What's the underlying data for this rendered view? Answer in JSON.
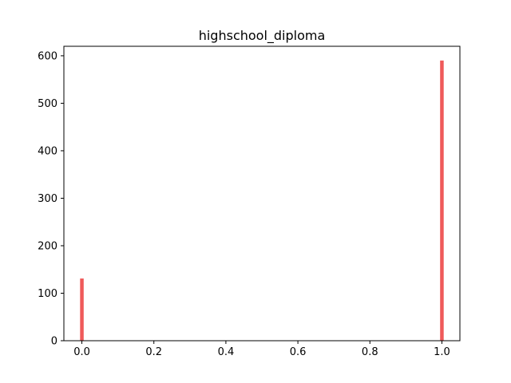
{
  "chart_data": {
    "type": "bar",
    "title": "highschool_diploma",
    "xlabel": "",
    "ylabel": "",
    "xlim": [
      -0.05,
      1.05
    ],
    "ylim": [
      0,
      620
    ],
    "xticks": [
      0.0,
      0.2,
      0.4,
      0.6,
      0.8,
      1.0
    ],
    "xtick_labels": [
      "0.0",
      "0.2",
      "0.4",
      "0.6",
      "0.8",
      "1.0"
    ],
    "yticks": [
      0,
      100,
      200,
      300,
      400,
      500,
      600
    ],
    "ytick_labels": [
      "0",
      "100",
      "200",
      "300",
      "400",
      "500",
      "600"
    ],
    "bin_width": 0.01,
    "bars": [
      {
        "x": 0.0,
        "value": 131
      },
      {
        "x": 1.0,
        "value": 590
      }
    ],
    "grid": false,
    "bar_color": "#ef5a5a"
  }
}
